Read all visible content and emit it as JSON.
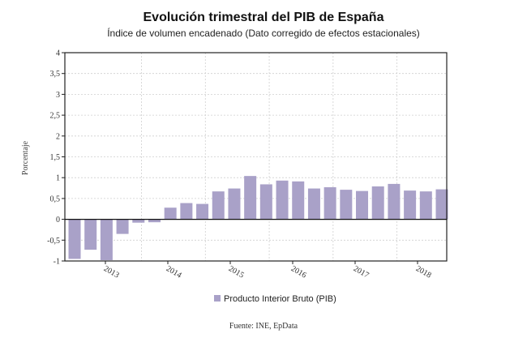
{
  "chart_data": {
    "type": "bar",
    "title": "Evolución trimestral del PIB de España",
    "subtitle": "Índice de volumen encadenado (Dato corregido de efectos estacionales)",
    "ylabel": "Porcentaje",
    "xlabel": "",
    "ylim": [
      -1,
      4
    ],
    "yticks": [
      "-1",
      "-0,5",
      "0",
      "0,5",
      "1",
      "1,5",
      "2",
      "2,5",
      "3",
      "3,5",
      "4"
    ],
    "ytick_values": [
      -1,
      -0.5,
      0,
      0.5,
      1,
      1.5,
      2,
      2.5,
      3,
      3.5,
      4
    ],
    "year_labels": [
      "2013",
      "2014",
      "2015",
      "2016",
      "2017",
      "2018"
    ],
    "values": [
      -0.95,
      -0.73,
      -0.98,
      -0.35,
      -0.08,
      -0.07,
      0.28,
      0.39,
      0.37,
      0.67,
      0.74,
      1.04,
      0.84,
      0.93,
      0.91,
      0.74,
      0.77,
      0.71,
      0.68,
      0.79,
      0.85,
      0.69,
      0.67,
      0.72
    ],
    "grid": true,
    "legend_position": "bottom",
    "series_name": "Producto Interior Bruto (PIB)",
    "color": "#a9a1c8",
    "source": "Fuente: INE, EpData"
  }
}
